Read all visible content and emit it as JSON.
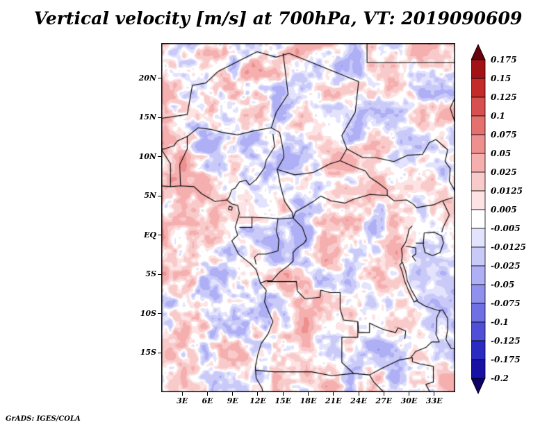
{
  "title": "Vertical velocity [m/s] at 700hPa, VT: 2019090609",
  "credit": "GrADS: IGES/COLA",
  "chart_data": {
    "type": "heatmap",
    "title": "Vertical velocity [m/s] at 700hPa, VT: 2019090609",
    "variable": "Vertical velocity",
    "units": "m/s",
    "level": "700hPa",
    "valid_time": "2019090609",
    "x_ticks": [
      "3E",
      "6E",
      "9E",
      "12E",
      "15E",
      "18E",
      "21E",
      "24E",
      "27E",
      "30E",
      "33E"
    ],
    "y_ticks": [
      "20N",
      "15N",
      "10N",
      "5N",
      "EQ",
      "5S",
      "10S",
      "15S"
    ],
    "lon_range": [
      0.5,
      35.5
    ],
    "lat_range": [
      -20,
      24.5
    ],
    "legend_position": "right",
    "grid": false,
    "colorbar": {
      "labels": [
        "0.175",
        "0.15",
        "0.125",
        "0.1",
        "0.075",
        "0.05",
        "0.025",
        "0.0125",
        "0.005",
        "-0.005",
        "-0.0125",
        "-0.025",
        "-0.05",
        "-0.075",
        "-0.1",
        "-0.125",
        "-0.175",
        "-0.2"
      ],
      "levels": [
        0.175,
        0.15,
        0.125,
        0.1,
        0.075,
        0.05,
        0.025,
        0.0125,
        0.005,
        -0.005,
        -0.0125,
        -0.025,
        -0.05,
        -0.075,
        -0.1,
        -0.125,
        -0.175,
        -0.2
      ],
      "colors": [
        "#67000d",
        "#a31217",
        "#c32b2b",
        "#d74f4f",
        "#e57070",
        "#ee9090",
        "#f5afaf",
        "#f9caca",
        "#fde3e3",
        "#ffffff",
        "#e3e3fd",
        "#cacaf9",
        "#afaff5",
        "#9090ee",
        "#7070e5",
        "#4f4fd7",
        "#2b2bc3",
        "#1712a3",
        "#0d0067"
      ]
    }
  }
}
